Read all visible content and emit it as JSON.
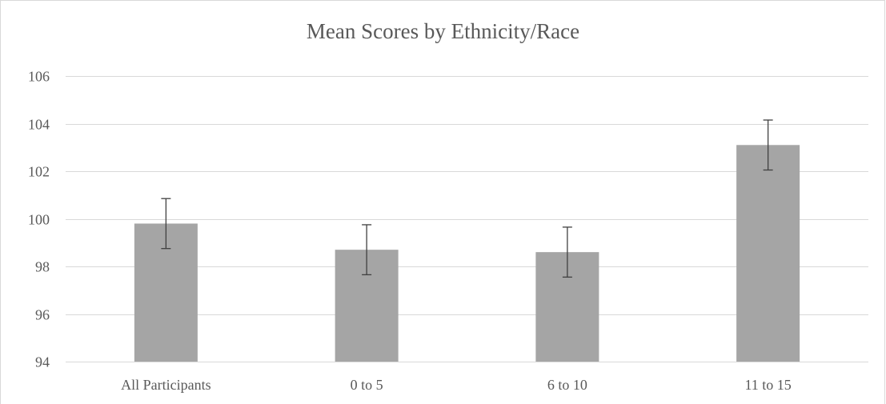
{
  "chart_data": {
    "type": "bar",
    "title": "Mean Scores by Ethnicity/Race",
    "xlabel": "",
    "ylabel": "",
    "categories": [
      "All Participants",
      "0 to 5",
      "6 to 10",
      "11 to 15"
    ],
    "values": [
      99.8,
      98.7,
      98.6,
      103.1
    ],
    "error_low": [
      98.75,
      97.65,
      97.55,
      102.05
    ],
    "error_high": [
      100.85,
      99.75,
      99.65,
      104.15
    ],
    "ylim": [
      94,
      106
    ],
    "yticks": [
      "94",
      "96",
      "98",
      "100",
      "102",
      "104",
      "106"
    ],
    "grid": true,
    "legend": "none",
    "colors": {
      "bar": "#a5a5a5",
      "gridline": "#d9d9d9",
      "error_bar": "#404040",
      "text": "#595959"
    }
  }
}
